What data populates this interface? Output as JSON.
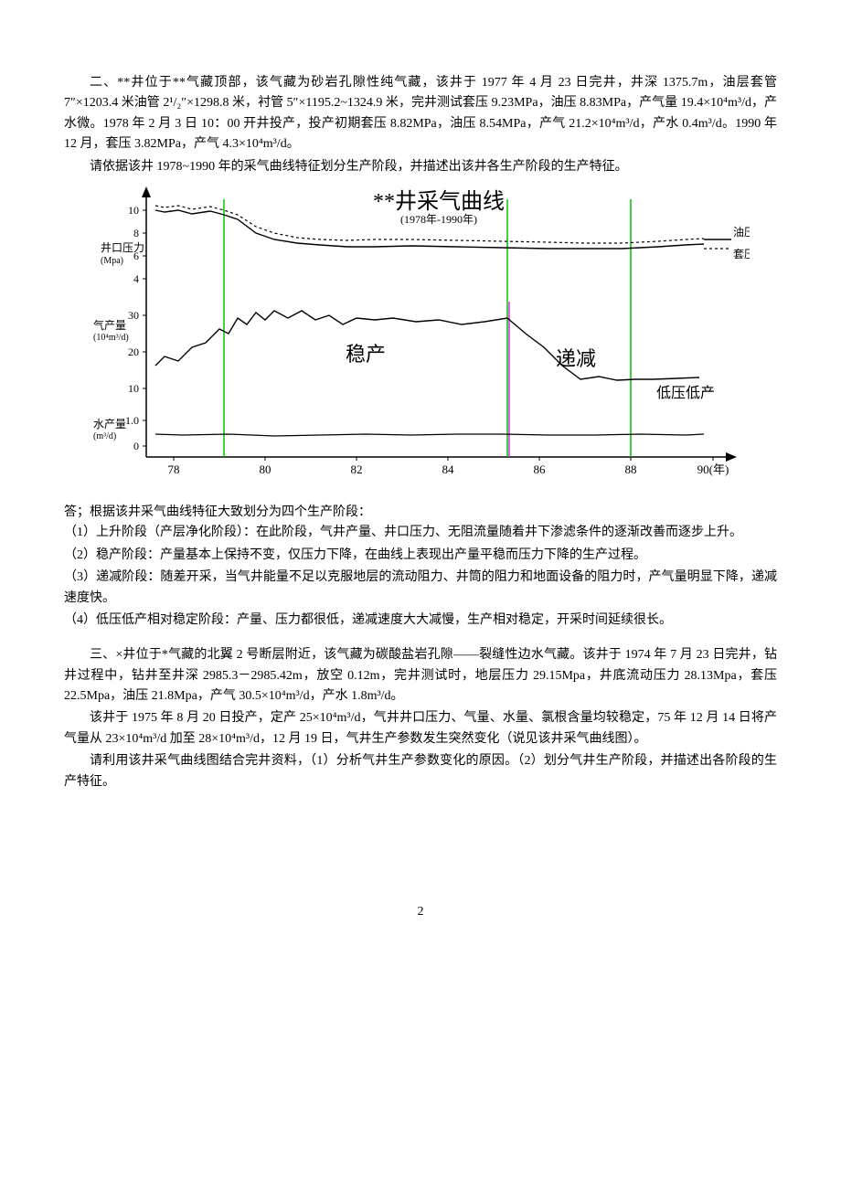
{
  "p1": "二、**井位于**气藏顶部，该气藏为砂岩孔隙性纯气藏，该井于 1977 年 4 月 23 日完井，井深 1375.7m，油层套管 7″×1203.4 米油管 2¹/₂″×1298.8 米，衬管 5″×1195.2~1324.9 米，完井测试套压 9.23MPa，油压 8.83MPa，产气量 19.4×10⁴m³/d，产水微。1978 年 2 月 3 日 10：00 开井投产，投产初期套压 8.82MPa，油压 8.54MPa，产气 21.2×10⁴m³/d，产水 0.4m³/d。1990 年 12 月，套压 3.82MPa，产气 4.3×10⁴m³/d。",
  "p2": "请依据该井 1978~1990 年的采气曲线特征划分生产阶段，并描述出该井各生产阶段的生产特征。",
  "answer_head": "答；根据该井采气曲线特征大致划分为四个生产阶段：",
  "a1": "（1）上升阶段（产层净化阶段）：在此阶段，气井产量、井口压力、无阻流量随着井下渗滤条件的逐渐改善而逐步上升。",
  "a2": "（2）稳产阶段：产量基本上保持不变，仅压力下降，在曲线上表现出产量平稳而压力下降的生产过程。",
  "a3": "（3）递减阶段：随差开采，当气井能量不足以克服地层的流动阻力、井筒的阻力和地面设备的阻力时，产气量明显下降，递减速度快。",
  "a4": "（4）低压低产相对稳定阶段：产量、压力都很低，递减速度大大减慢，生产相对稳定，开采时间延续很长。",
  "p3": "三、×井位于*气藏的北翼 2 号断层附近，该气藏为碳酸盐岩孔隙——裂缝性边水气藏。该井于 1974 年 7 月 23 日完井，钻井过程中，钻井至井深 2985.3－2985.42m，放空 0.12m，完井测试时，地层压力 29.15Mpa，井底流动压力 28.13Mpa，套压 22.5Mpa，油压 21.8Mpa，产气 30.5×10⁴m³/d，产水 1.8m³/d。",
  "p4": "该井于 1975 年 8 月 20 日投产，定产 25×10⁴m³/d，气井井口压力、气量、水量、氯根含量均较稳定，75 年 12 月 14 日将产气量从 23×10⁴m³/d 加至 28×10⁴m³/d，12 月 19 日，气井生产参数发生突然变化（说见该井采气曲线图）。",
  "p5": "请利用该井采气曲线图结合完井资料，（1）分析气井生产参数变化的原因。（2）划分气井生产阶段，并描述出各阶段的生产特征。",
  "page_num": "2",
  "chart": {
    "title": "**井采气曲线",
    "subtitle": "(1978年-1990年)",
    "y1_label": "井口压力",
    "y1_unit": "(Mpa)",
    "y2_label": "气产量",
    "y2_unit": "(10⁴m³/d)",
    "y3_label": "水产量",
    "y3_unit": "(m³/d)",
    "x_ticks": [
      "78",
      "80",
      "82",
      "84",
      "86",
      "88",
      "90(年)"
    ],
    "y1_ticks": [
      "10",
      "8",
      "6",
      "4"
    ],
    "y2_ticks": [
      "30",
      "20",
      "10"
    ],
    "y3_ticks": [
      "1.0",
      "0"
    ],
    "region_labels": {
      "stable": "稳产",
      "decline": "递减",
      "low": "低压低产"
    },
    "legend": {
      "oil_p": "油压",
      "casing_p": "套压"
    },
    "colors": {
      "axis": "#000000",
      "line": "#000000",
      "divider": "#00c000",
      "decline_divider": "#d000d0",
      "text": "#000000"
    },
    "pressure_oil": [
      [
        70,
        30
      ],
      [
        80,
        32
      ],
      [
        95,
        30
      ],
      [
        110,
        34
      ],
      [
        130,
        31
      ],
      [
        145,
        35
      ],
      [
        160,
        40
      ],
      [
        180,
        55
      ],
      [
        200,
        62
      ],
      [
        225,
        66
      ],
      [
        250,
        68
      ],
      [
        280,
        70
      ],
      [
        310,
        70
      ],
      [
        350,
        69
      ],
      [
        400,
        70
      ],
      [
        450,
        71
      ],
      [
        500,
        72
      ],
      [
        540,
        72
      ],
      [
        580,
        72
      ],
      [
        620,
        70
      ],
      [
        650,
        68
      ],
      [
        670,
        67
      ]
    ],
    "pressure_casing": [
      [
        70,
        25
      ],
      [
        80,
        27
      ],
      [
        95,
        25
      ],
      [
        110,
        29
      ],
      [
        130,
        26
      ],
      [
        145,
        30
      ],
      [
        160,
        35
      ],
      [
        180,
        48
      ],
      [
        200,
        55
      ],
      [
        225,
        60
      ],
      [
        250,
        62
      ],
      [
        280,
        63
      ],
      [
        310,
        62
      ],
      [
        350,
        62
      ],
      [
        400,
        63
      ],
      [
        450,
        64
      ],
      [
        500,
        65
      ],
      [
        540,
        66
      ],
      [
        580,
        66
      ],
      [
        620,
        64
      ],
      [
        650,
        62
      ],
      [
        670,
        61
      ]
    ],
    "gas_rate": [
      [
        70,
        200
      ],
      [
        80,
        190
      ],
      [
        95,
        195
      ],
      [
        110,
        180
      ],
      [
        125,
        175
      ],
      [
        140,
        160
      ],
      [
        150,
        165
      ],
      [
        160,
        148
      ],
      [
        170,
        155
      ],
      [
        180,
        142
      ],
      [
        190,
        150
      ],
      [
        200,
        140
      ],
      [
        215,
        148
      ],
      [
        230,
        140
      ],
      [
        245,
        150
      ],
      [
        260,
        145
      ],
      [
        275,
        155
      ],
      [
        290,
        148
      ],
      [
        310,
        150
      ],
      [
        330,
        148
      ],
      [
        355,
        152
      ],
      [
        380,
        150
      ],
      [
        405,
        155
      ],
      [
        430,
        152
      ],
      [
        455,
        148
      ],
      [
        475,
        165
      ],
      [
        495,
        180
      ],
      [
        515,
        200
      ],
      [
        535,
        215
      ],
      [
        555,
        212
      ],
      [
        575,
        216
      ],
      [
        595,
        215
      ],
      [
        615,
        215
      ],
      [
        640,
        214
      ],
      [
        665,
        213
      ]
    ],
    "water_rate": [
      [
        70,
        275
      ],
      [
        100,
        276
      ],
      [
        150,
        275
      ],
      [
        200,
        277
      ],
      [
        250,
        276
      ],
      [
        300,
        275
      ],
      [
        350,
        276
      ],
      [
        400,
        275
      ],
      [
        450,
        275
      ],
      [
        500,
        276
      ],
      [
        550,
        276
      ],
      [
        600,
        275
      ],
      [
        650,
        276
      ],
      [
        670,
        275
      ]
    ],
    "dividers_green": [
      145,
      455,
      590
    ],
    "divider_magenta": 455
  }
}
